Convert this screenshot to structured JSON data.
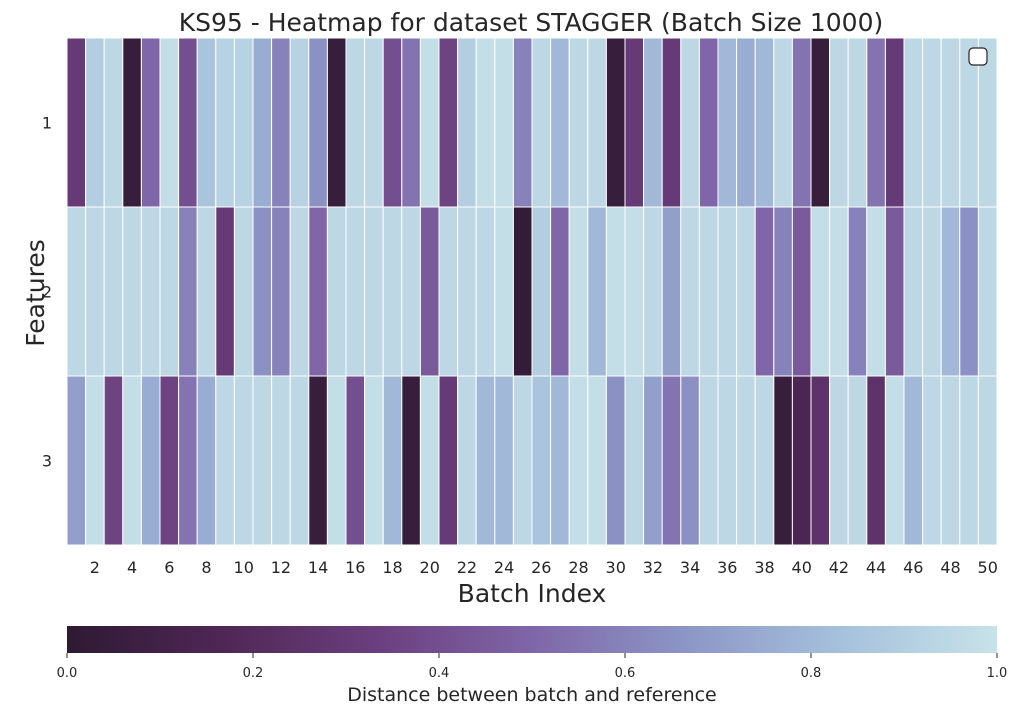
{
  "chart_data": {
    "type": "heatmap",
    "title": "KS95 - Heatmap for dataset STAGGER (Batch Size 1000)",
    "xlabel": "Batch Index",
    "ylabel": "Features",
    "x_ticks": [
      "2",
      "4",
      "6",
      "8",
      "10",
      "12",
      "14",
      "16",
      "18",
      "20",
      "22",
      "24",
      "26",
      "28",
      "30",
      "32",
      "34",
      "36",
      "38",
      "40",
      "42",
      "44",
      "46",
      "48",
      "50"
    ],
    "y_categories": [
      "1",
      "2",
      "3"
    ],
    "colorbar": {
      "label": "Distance between batch and reference",
      "range": [
        0.0,
        1.0
      ],
      "ticks": [
        "0.0",
        "0.2",
        "0.4",
        "0.6",
        "0.8",
        "1.0"
      ],
      "colors": [
        "#2e1a33",
        "#4f2755",
        "#6b3f7e",
        "#7f66a8",
        "#8c96c6",
        "#a6c1dc",
        "#c7e2e8"
      ]
    },
    "grid": false,
    "legend": "top-right",
    "x": [
      1,
      2,
      3,
      4,
      5,
      6,
      7,
      8,
      9,
      10,
      11,
      12,
      13,
      14,
      15,
      16,
      17,
      18,
      19,
      20,
      21,
      22,
      23,
      24,
      25,
      26,
      27,
      28,
      29,
      30,
      31,
      32,
      33,
      34,
      35,
      36,
      37,
      38,
      39,
      40,
      41,
      42,
      43,
      44,
      45,
      46,
      47,
      48,
      49,
      50
    ],
    "values": [
      [
        0.3,
        0.9,
        0.95,
        0.05,
        0.5,
        0.98,
        0.4,
        0.85,
        0.92,
        0.92,
        0.75,
        0.6,
        0.92,
        0.65,
        0.05,
        0.95,
        0.95,
        0.4,
        0.55,
        0.98,
        0.35,
        0.9,
        0.98,
        0.98,
        0.6,
        0.95,
        0.8,
        0.95,
        0.95,
        0.05,
        0.3,
        0.8,
        0.3,
        0.95,
        0.5,
        0.8,
        0.75,
        0.8,
        0.95,
        0.55,
        0.05,
        0.95,
        0.95,
        0.55,
        0.3,
        0.95,
        0.95,
        0.95,
        0.95,
        0.95
      ],
      [
        0.95,
        0.95,
        0.95,
        0.95,
        0.95,
        0.95,
        0.6,
        0.95,
        0.3,
        0.95,
        0.65,
        0.6,
        0.95,
        0.5,
        0.95,
        0.95,
        0.95,
        0.95,
        0.95,
        0.45,
        0.95,
        0.95,
        0.95,
        0.98,
        0.02,
        0.9,
        0.5,
        0.98,
        0.8,
        0.98,
        0.98,
        0.95,
        0.7,
        0.95,
        0.95,
        0.95,
        0.95,
        0.5,
        0.6,
        0.45,
        0.98,
        0.98,
        0.6,
        0.98,
        0.45,
        0.95,
        0.95,
        0.8,
        0.65,
        0.95
      ],
      [
        0.7,
        0.98,
        0.35,
        0.98,
        0.75,
        0.35,
        0.55,
        0.75,
        0.95,
        0.95,
        0.95,
        0.95,
        0.95,
        0.05,
        0.98,
        0.4,
        0.98,
        0.8,
        0.05,
        0.98,
        0.3,
        0.95,
        0.8,
        0.8,
        0.95,
        0.85,
        0.8,
        0.98,
        0.98,
        0.65,
        0.95,
        0.7,
        0.55,
        0.65,
        0.95,
        0.95,
        0.95,
        0.95,
        0.05,
        0.15,
        0.25,
        0.95,
        0.95,
        0.25,
        0.98,
        0.8,
        0.95,
        0.95,
        0.95,
        0.95
      ]
    ]
  }
}
